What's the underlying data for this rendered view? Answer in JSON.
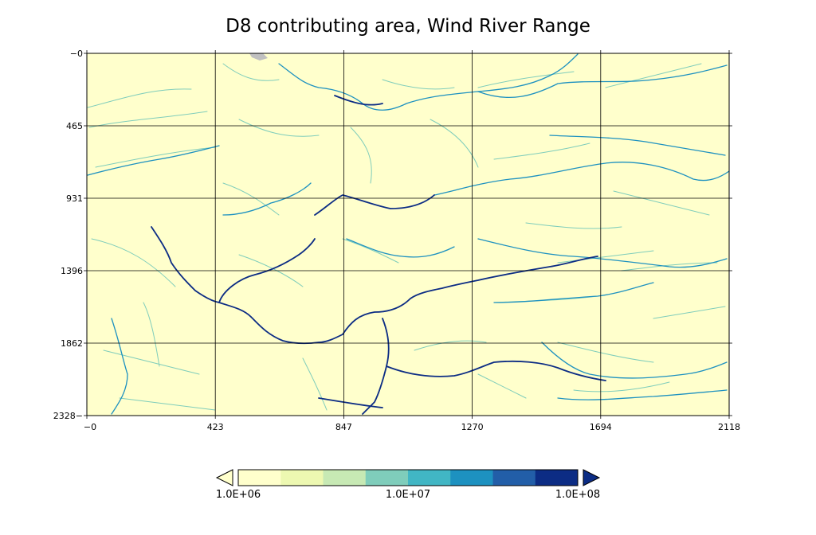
{
  "title": "D8 contributing area, Wind River Range",
  "map": {
    "background_color": "#ffffcc",
    "nodata_color": "#c0c0c0",
    "grid": true,
    "x_ticks": [
      "0",
      "423",
      "847",
      "1270",
      "1694",
      "2118"
    ],
    "y_ticks": [
      "0",
      "465",
      "931",
      "1396",
      "1862",
      "2328"
    ],
    "x_range": [
      0,
      2118
    ],
    "y_range": [
      0,
      2328
    ],
    "y_axis_direction": "down"
  },
  "colorbar": {
    "colors": [
      "#ffffcc",
      "#edf8b1",
      "#c7e9b4",
      "#7fcdbb",
      "#41b6c4",
      "#1d91c0",
      "#225ea8",
      "#0c2c84"
    ],
    "under_color": "#ffffcc",
    "over_color": "#0c2c84",
    "labels": [
      "1.0E+06",
      "1.0E+07",
      "1.0E+08"
    ]
  }
}
